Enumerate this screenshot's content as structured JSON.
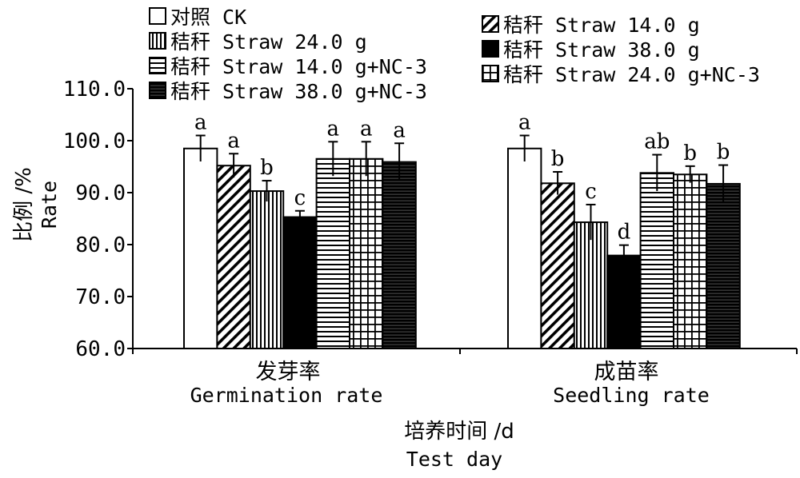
{
  "chart_data": {
    "type": "bar",
    "title": "",
    "xlabel": "培养时间 /d",
    "xlabel_en": "Test day",
    "ylabel": "比例 /%",
    "ylabel_en": "Rate",
    "ylim": [
      60,
      110
    ],
    "yticks": [
      "60.0",
      "70.0",
      "80.0",
      "90.0",
      "100.0",
      "110.0"
    ],
    "categories": [
      {
        "zh": "发芽率",
        "en": "Germination rate"
      },
      {
        "zh": "成苗率",
        "en": "Seedling rate"
      }
    ],
    "series": [
      {
        "name": "对照 CK",
        "pattern": "blank",
        "values": [
          98.5,
          98.5
        ],
        "errors": [
          2.5,
          2.5
        ],
        "labels": [
          "a",
          "a"
        ]
      },
      {
        "name": "秸秆 Straw 14.0 g",
        "pattern": "diagonal",
        "values": [
          95.2,
          91.8
        ],
        "errors": [
          2.3,
          2.2
        ],
        "labels": [
          "a",
          "b"
        ]
      },
      {
        "name": "秸秆 Straw 24.0 g",
        "pattern": "vertical",
        "values": [
          90.3,
          84.3
        ],
        "errors": [
          2.0,
          3.4
        ],
        "labels": [
          "b",
          "c"
        ]
      },
      {
        "name": "秸秆 Straw 38.0 g",
        "pattern": "solid",
        "values": [
          85.3,
          77.9
        ],
        "errors": [
          1.2,
          2.0
        ],
        "labels": [
          "c",
          "d"
        ]
      },
      {
        "name": "秸秆 Straw 14.0 g+NC-3",
        "pattern": "horizontal",
        "values": [
          96.5,
          93.8
        ],
        "errors": [
          3.3,
          3.5
        ],
        "labels": [
          "a",
          "ab"
        ]
      },
      {
        "name": "秸秆 Straw 24.0 g+NC-3",
        "pattern": "grid",
        "values": [
          96.5,
          93.5
        ],
        "errors": [
          3.3,
          1.6
        ],
        "labels": [
          "a",
          "b"
        ]
      },
      {
        "name": "秸秆 Straw 38.0 g+NC-3",
        "pattern": "dense-horizontal",
        "values": [
          95.9,
          91.7
        ],
        "errors": [
          3.6,
          3.6
        ],
        "labels": [
          "a",
          "b"
        ]
      }
    ],
    "legend": [
      {
        "series": 0,
        "column": "left"
      },
      {
        "series": 2,
        "column": "left"
      },
      {
        "series": 4,
        "column": "left"
      },
      {
        "series": 6,
        "column": "left"
      },
      {
        "series": 1,
        "column": "right"
      },
      {
        "series": 3,
        "column": "right"
      },
      {
        "series": 5,
        "column": "right"
      }
    ],
    "legend_placement": "top",
    "grid": false
  }
}
